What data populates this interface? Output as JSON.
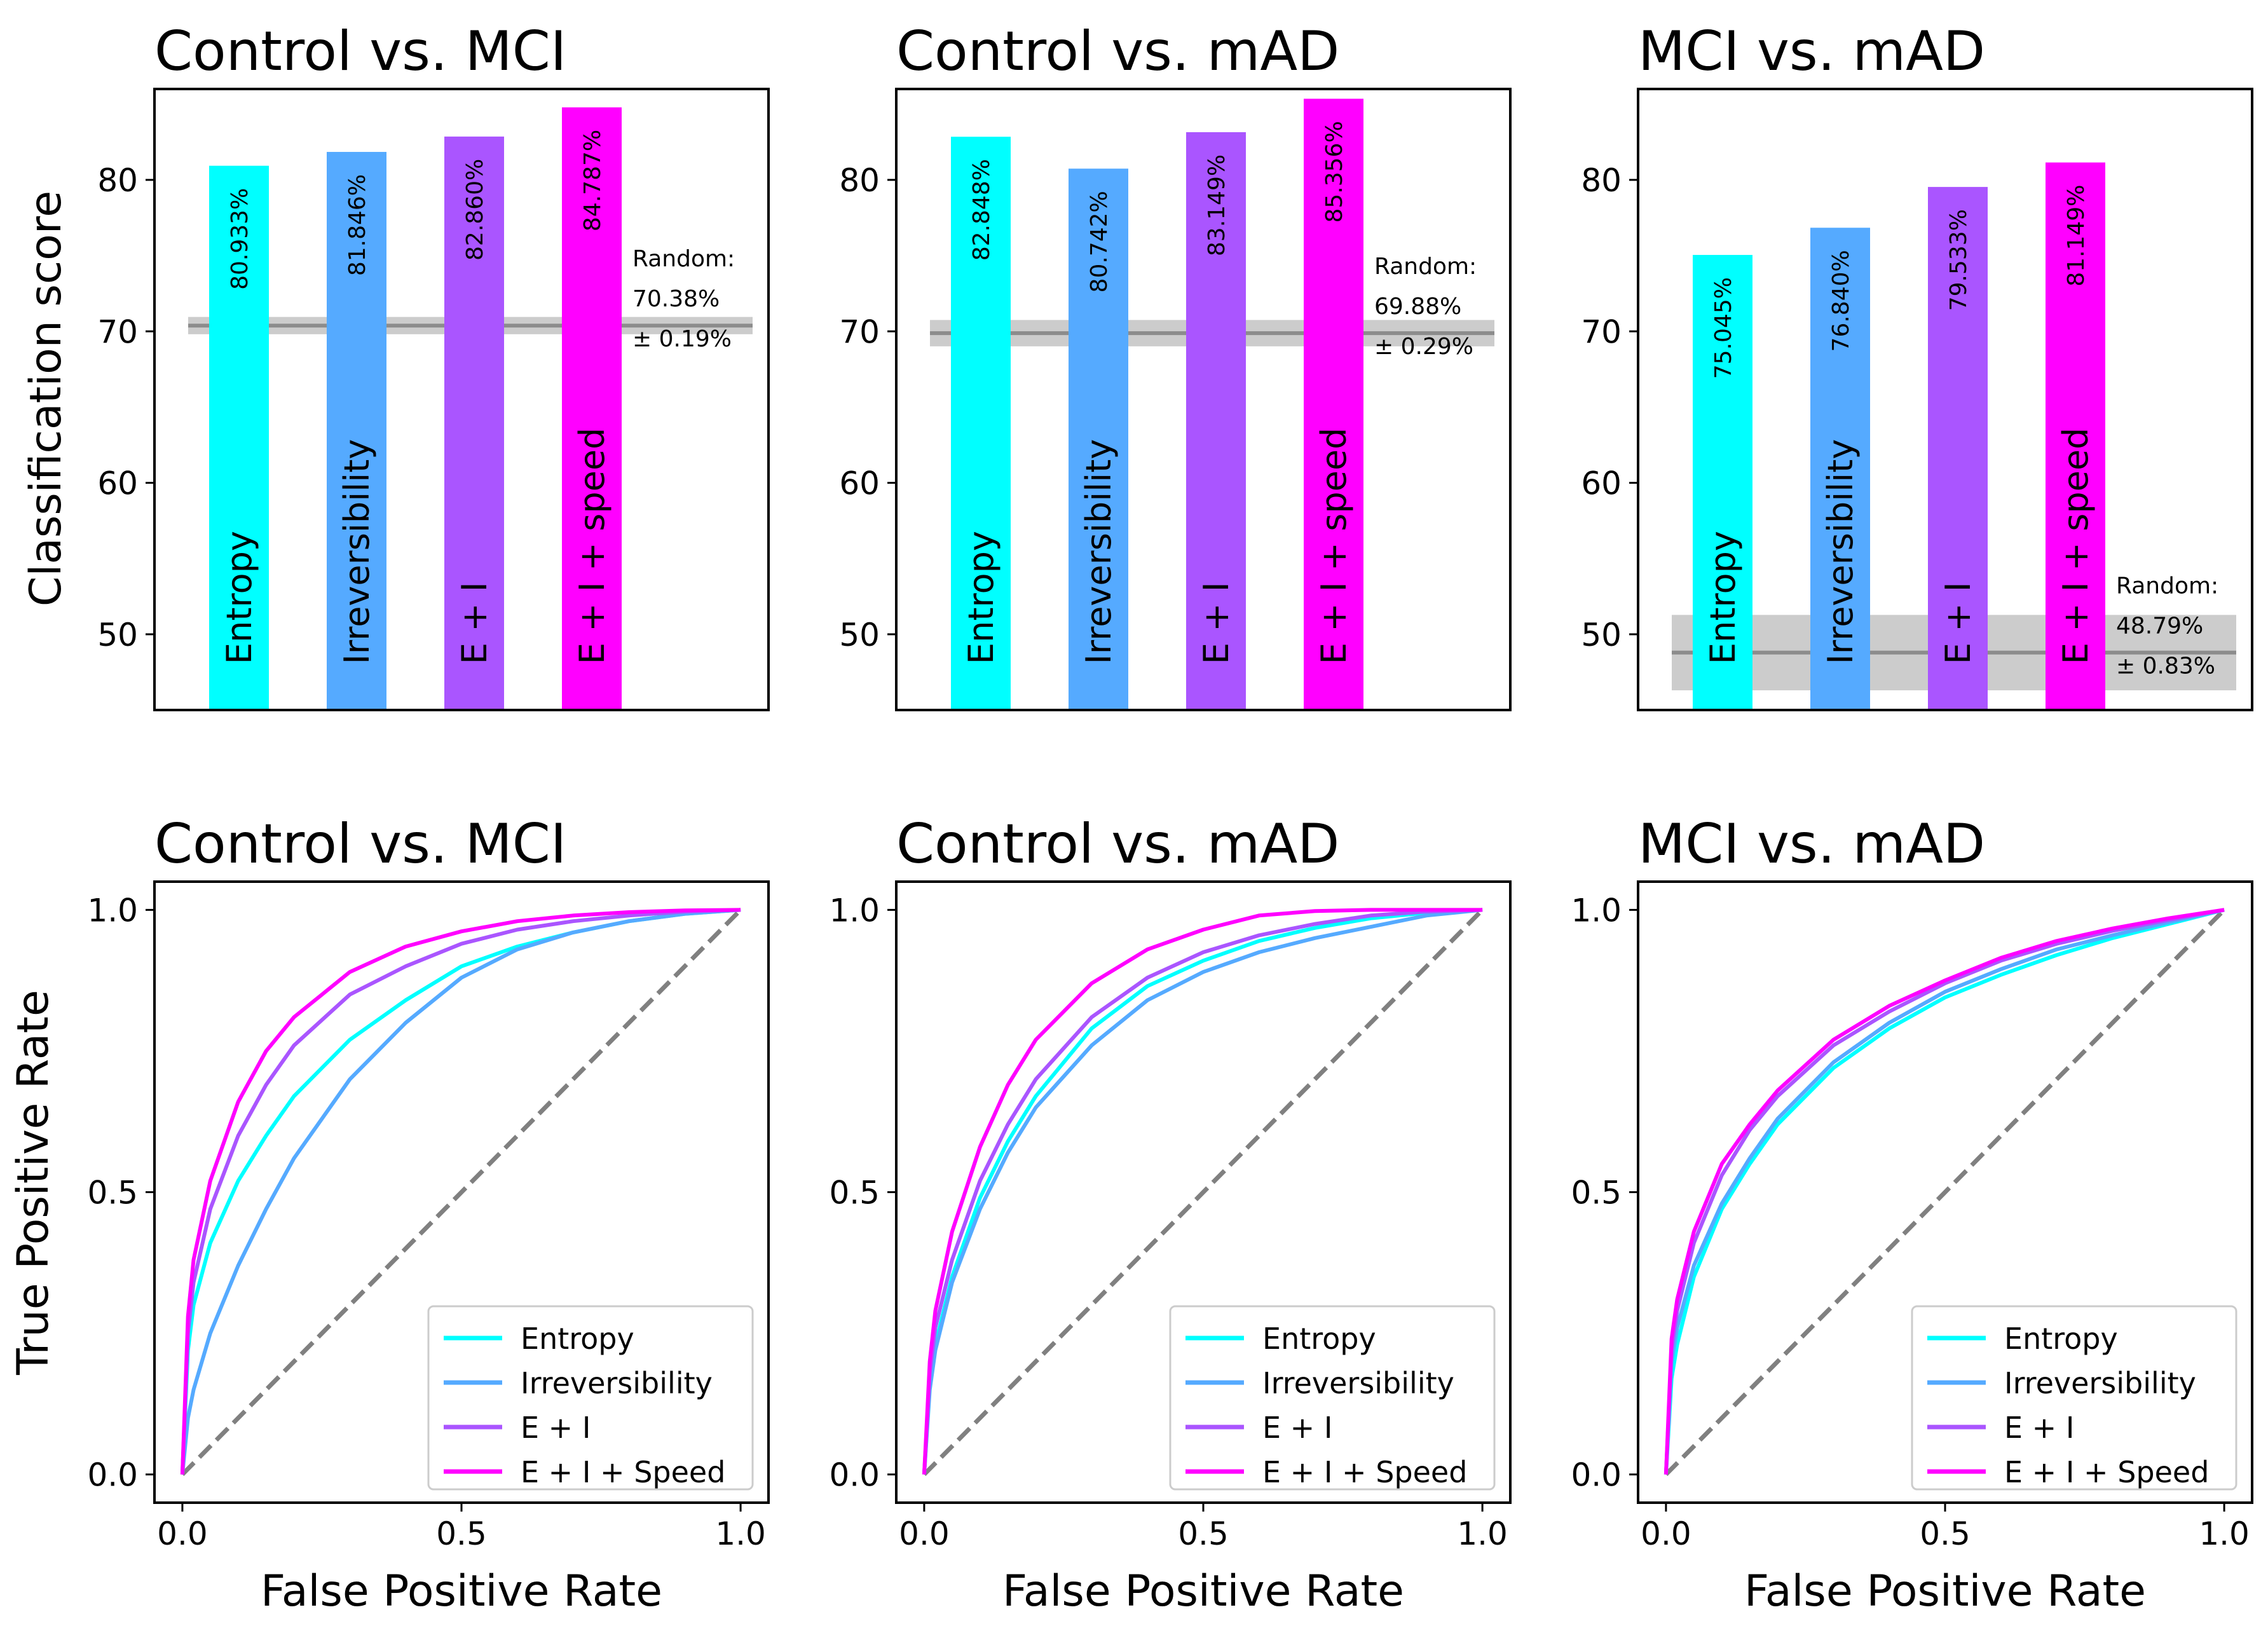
{
  "colors": {
    "entropy": "#00ffff",
    "irreversibility": "#55aaff",
    "e_i": "#aa55ff",
    "e_i_speed": "#ff00ff",
    "random_line": "#8c8c8c",
    "random_band": "#cccccc",
    "diagonal": "#808080"
  },
  "labels": {
    "ylabel_top": "Classification score",
    "ylabel_bottom": "True Positive Rate",
    "xlabel_bottom": "False Positive Rate",
    "random_prefix": "Random:"
  },
  "chart_data": [
    {
      "type": "bar",
      "title": "Control vs. MCI",
      "ylabel": "Classification score",
      "ylim": [
        45,
        86
      ],
      "yticks": [
        50,
        60,
        70,
        80
      ],
      "categories": [
        "Entropy",
        "Irreversibility",
        "E + I",
        "E + I + speed"
      ],
      "values": [
        80.933,
        81.846,
        82.86,
        84.787
      ],
      "value_labels": [
        "80.933%",
        "81.846%",
        "82.860%",
        "84.787%"
      ],
      "random": {
        "value": 70.38,
        "sd": 0.19,
        "value_label": "70.38%",
        "sd_label": "± 0.19%"
      }
    },
    {
      "type": "bar",
      "title": "Control vs. mAD",
      "ylabel": "",
      "ylim": [
        45,
        86
      ],
      "yticks": [
        50,
        60,
        70,
        80
      ],
      "categories": [
        "Entropy",
        "Irreversibility",
        "E + I",
        "E + I + speed"
      ],
      "values": [
        82.848,
        80.742,
        83.149,
        85.356
      ],
      "value_labels": [
        "82.848%",
        "80.742%",
        "83.149%",
        "85.356%"
      ],
      "random": {
        "value": 69.88,
        "sd": 0.29,
        "value_label": "69.88%",
        "sd_label": "± 0.29%"
      }
    },
    {
      "type": "bar",
      "title": "MCI vs. mAD",
      "ylabel": "",
      "ylim": [
        45,
        86
      ],
      "yticks": [
        50,
        60,
        70,
        80
      ],
      "categories": [
        "Entropy",
        "Irreversibility",
        "E + I",
        "E + I + speed"
      ],
      "values": [
        75.045,
        76.84,
        79.533,
        81.149
      ],
      "value_labels": [
        "75.045%",
        "76.840%",
        "79.533%",
        "81.149%"
      ],
      "random": {
        "value": 48.79,
        "sd": 0.83,
        "value_label": "48.79%",
        "sd_label": "± 0.83%"
      }
    },
    {
      "type": "line",
      "title": "Control vs. MCI",
      "xlabel": "False Positive Rate",
      "ylabel": "True Positive Rate",
      "xlim": [
        -0.05,
        1.05
      ],
      "ylim": [
        -0.05,
        1.05
      ],
      "xticks": [
        "0.0",
        "0.5",
        "1.0"
      ],
      "yticks": [
        "0.0",
        "0.5",
        "1.0"
      ],
      "legend": "lower-right",
      "series": [
        {
          "name": "Entropy",
          "x": [
            0,
            0.01,
            0.02,
            0.05,
            0.1,
            0.15,
            0.2,
            0.3,
            0.4,
            0.5,
            0.6,
            0.7,
            0.8,
            0.9,
            1.0
          ],
          "y": [
            0,
            0.22,
            0.3,
            0.41,
            0.52,
            0.6,
            0.67,
            0.77,
            0.84,
            0.9,
            0.935,
            0.96,
            0.98,
            0.993,
            1.0
          ]
        },
        {
          "name": "Irreversibility",
          "x": [
            0,
            0.01,
            0.02,
            0.05,
            0.1,
            0.15,
            0.2,
            0.3,
            0.4,
            0.5,
            0.6,
            0.7,
            0.8,
            0.9,
            1.0
          ],
          "y": [
            0,
            0.1,
            0.15,
            0.25,
            0.37,
            0.47,
            0.56,
            0.7,
            0.8,
            0.88,
            0.93,
            0.96,
            0.98,
            0.993,
            1.0
          ]
        },
        {
          "name": "E + I",
          "x": [
            0,
            0.01,
            0.02,
            0.05,
            0.1,
            0.15,
            0.2,
            0.3,
            0.4,
            0.5,
            0.6,
            0.7,
            0.8,
            0.9,
            1.0
          ],
          "y": [
            0,
            0.25,
            0.34,
            0.47,
            0.6,
            0.69,
            0.76,
            0.85,
            0.9,
            0.94,
            0.965,
            0.98,
            0.99,
            0.997,
            1.0
          ]
        },
        {
          "name": "E + I + Speed",
          "x": [
            0,
            0.01,
            0.02,
            0.05,
            0.1,
            0.15,
            0.2,
            0.3,
            0.4,
            0.5,
            0.6,
            0.7,
            0.8,
            0.9,
            1.0
          ],
          "y": [
            0,
            0.28,
            0.38,
            0.52,
            0.66,
            0.75,
            0.81,
            0.89,
            0.935,
            0.962,
            0.98,
            0.99,
            0.996,
            0.999,
            1.0
          ]
        }
      ],
      "reference": {
        "name": "chance",
        "x": [
          0,
          1
        ],
        "y": [
          0,
          1
        ]
      }
    },
    {
      "type": "line",
      "title": "Control vs. mAD",
      "xlabel": "False Positive Rate",
      "ylabel": "",
      "xlim": [
        -0.05,
        1.05
      ],
      "ylim": [
        -0.05,
        1.05
      ],
      "xticks": [
        "0.0",
        "0.5",
        "1.0"
      ],
      "yticks": [
        "0.0",
        "0.5",
        "1.0"
      ],
      "legend": "lower-right",
      "series": [
        {
          "name": "Entropy",
          "x": [
            0,
            0.01,
            0.02,
            0.05,
            0.1,
            0.15,
            0.2,
            0.3,
            0.4,
            0.5,
            0.6,
            0.7,
            0.8,
            0.9,
            1.0
          ],
          "y": [
            0,
            0.16,
            0.23,
            0.35,
            0.49,
            0.59,
            0.67,
            0.79,
            0.865,
            0.91,
            0.945,
            0.968,
            0.985,
            0.995,
            1.0
          ]
        },
        {
          "name": "Irreversibility",
          "x": [
            0,
            0.01,
            0.02,
            0.05,
            0.1,
            0.15,
            0.2,
            0.3,
            0.4,
            0.5,
            0.6,
            0.7,
            0.8,
            0.9,
            1.0
          ],
          "y": [
            0,
            0.15,
            0.22,
            0.34,
            0.47,
            0.57,
            0.65,
            0.76,
            0.84,
            0.89,
            0.925,
            0.95,
            0.97,
            0.99,
            1.0
          ]
        },
        {
          "name": "E + I",
          "x": [
            0,
            0.01,
            0.02,
            0.05,
            0.1,
            0.15,
            0.2,
            0.3,
            0.4,
            0.5,
            0.6,
            0.7,
            0.8,
            0.9,
            1.0
          ],
          "y": [
            0,
            0.18,
            0.26,
            0.38,
            0.52,
            0.62,
            0.7,
            0.81,
            0.88,
            0.925,
            0.955,
            0.975,
            0.99,
            0.997,
            1.0
          ]
        },
        {
          "name": "E + I + Speed",
          "x": [
            0,
            0.01,
            0.02,
            0.05,
            0.1,
            0.15,
            0.2,
            0.3,
            0.4,
            0.5,
            0.6,
            0.7,
            0.8,
            0.9,
            1.0
          ],
          "y": [
            0,
            0.2,
            0.29,
            0.43,
            0.58,
            0.69,
            0.77,
            0.87,
            0.93,
            0.965,
            0.99,
            0.998,
            1.0,
            1.0,
            1.0
          ]
        }
      ],
      "reference": {
        "name": "chance",
        "x": [
          0,
          1
        ],
        "y": [
          0,
          1
        ]
      }
    },
    {
      "type": "line",
      "title": "MCI vs. mAD",
      "xlabel": "False Positive Rate",
      "ylabel": "",
      "xlim": [
        -0.05,
        1.05
      ],
      "ylim": [
        -0.05,
        1.05
      ],
      "xticks": [
        "0.0",
        "0.5",
        "1.0"
      ],
      "yticks": [
        "0.0",
        "0.5",
        "1.0"
      ],
      "legend": "lower-right",
      "series": [
        {
          "name": "Entropy",
          "x": [
            0,
            0.01,
            0.02,
            0.05,
            0.1,
            0.15,
            0.2,
            0.3,
            0.4,
            0.5,
            0.6,
            0.7,
            0.8,
            0.9,
            1.0
          ],
          "y": [
            0,
            0.17,
            0.23,
            0.35,
            0.47,
            0.55,
            0.62,
            0.72,
            0.79,
            0.845,
            0.885,
            0.92,
            0.95,
            0.975,
            1.0
          ]
        },
        {
          "name": "Irreversibility",
          "x": [
            0,
            0.01,
            0.02,
            0.05,
            0.1,
            0.15,
            0.2,
            0.3,
            0.4,
            0.5,
            0.6,
            0.7,
            0.8,
            0.9,
            1.0
          ],
          "y": [
            0,
            0.2,
            0.26,
            0.37,
            0.48,
            0.56,
            0.63,
            0.73,
            0.8,
            0.855,
            0.895,
            0.93,
            0.955,
            0.978,
            1.0
          ]
        },
        {
          "name": "E + I",
          "x": [
            0,
            0.01,
            0.02,
            0.05,
            0.1,
            0.15,
            0.2,
            0.3,
            0.4,
            0.5,
            0.6,
            0.7,
            0.8,
            0.9,
            1.0
          ],
          "y": [
            0,
            0.22,
            0.29,
            0.41,
            0.53,
            0.61,
            0.67,
            0.76,
            0.82,
            0.87,
            0.91,
            0.94,
            0.963,
            0.982,
            1.0
          ]
        },
        {
          "name": "E + I + Speed",
          "x": [
            0,
            0.01,
            0.02,
            0.05,
            0.1,
            0.15,
            0.2,
            0.3,
            0.4,
            0.5,
            0.6,
            0.7,
            0.8,
            0.9,
            1.0
          ],
          "y": [
            0,
            0.24,
            0.31,
            0.43,
            0.55,
            0.62,
            0.68,
            0.77,
            0.83,
            0.875,
            0.915,
            0.945,
            0.967,
            0.985,
            1.0
          ]
        }
      ],
      "reference": {
        "name": "chance",
        "x": [
          0,
          1
        ],
        "y": [
          0,
          1
        ]
      }
    }
  ]
}
